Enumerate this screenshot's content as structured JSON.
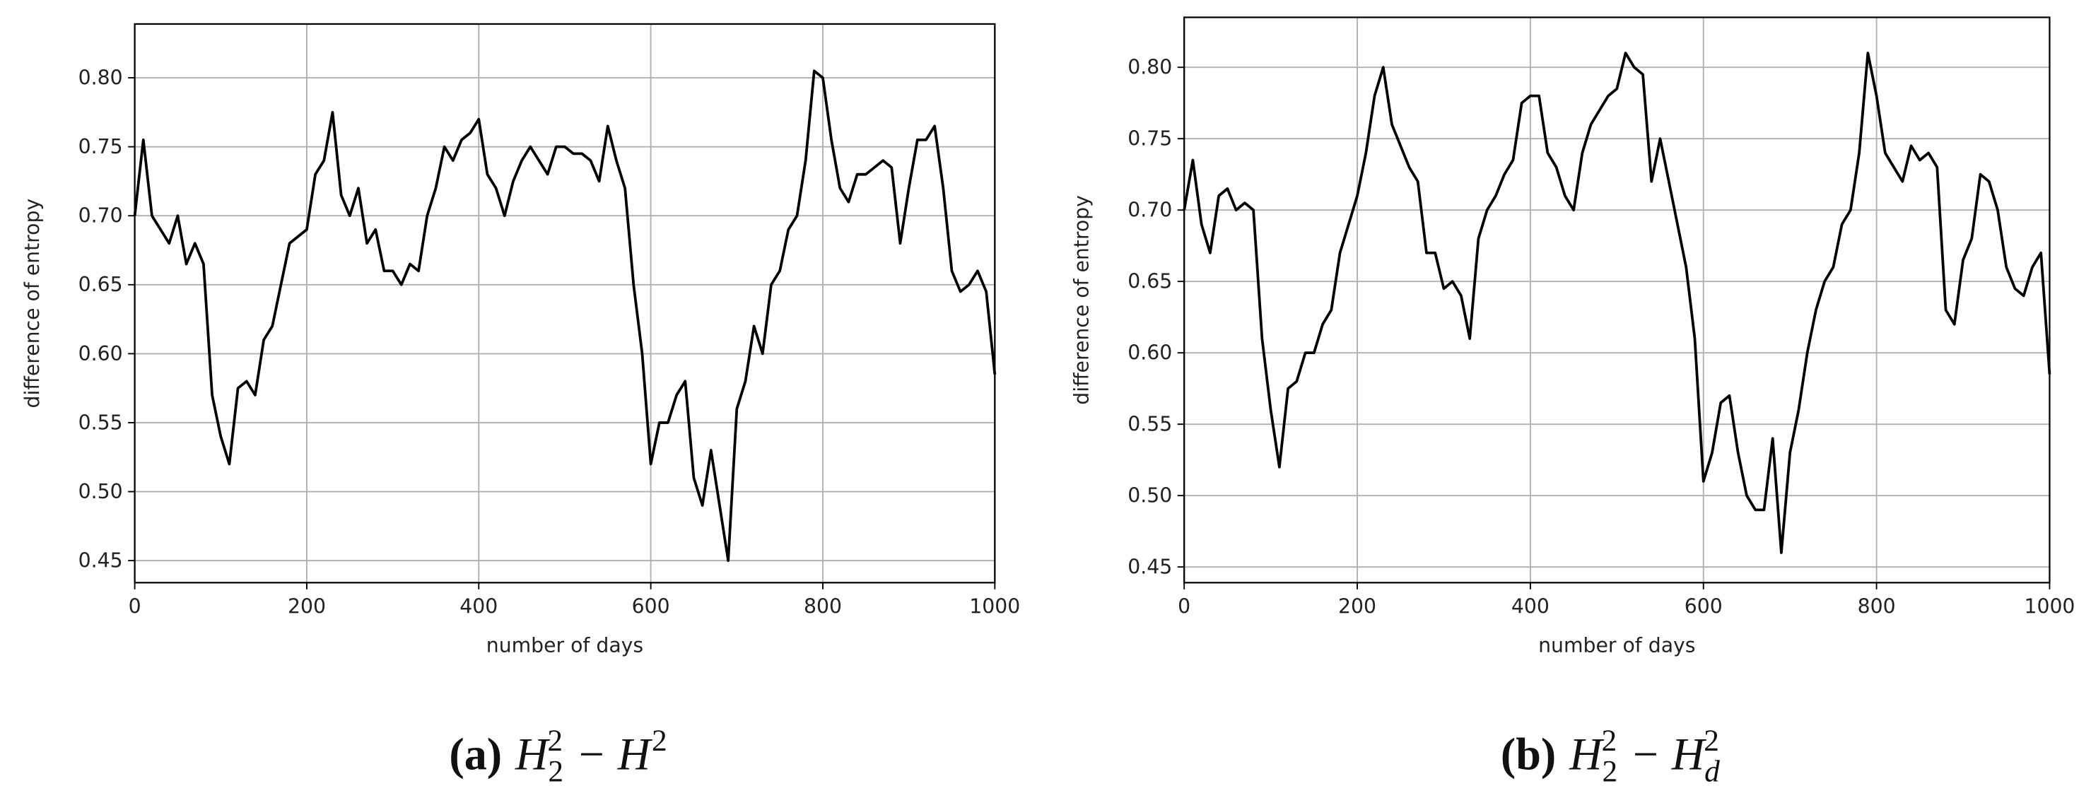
{
  "chart_data": [
    {
      "type": "line",
      "x_label": "number of days",
      "y_label": "difference of entropy",
      "color": "#000000",
      "grid": true,
      "xlim": [
        0,
        1000
      ],
      "xticks": [
        0,
        200,
        400,
        600,
        800,
        1000
      ],
      "ylim": [
        0.434,
        0.839
      ],
      "yticks": [
        0.45,
        {
          "value": 0.5,
          "label": "0.50"
        },
        0.55,
        {
          "value": 0.6,
          "label": "0.60"
        },
        0.65,
        {
          "value": 0.7,
          "label": "0.70"
        },
        0.75,
        {
          "value": 0.8,
          "label": "0.80"
        }
      ],
      "x": [
        0,
        10,
        20,
        30,
        40,
        50,
        60,
        70,
        80,
        90,
        100,
        110,
        120,
        130,
        140,
        150,
        160,
        170,
        180,
        190,
        200,
        210,
        220,
        230,
        240,
        250,
        260,
        270,
        280,
        290,
        300,
        310,
        320,
        330,
        340,
        350,
        360,
        370,
        380,
        390,
        400,
        410,
        420,
        430,
        440,
        450,
        460,
        470,
        480,
        490,
        500,
        510,
        520,
        530,
        540,
        550,
        560,
        570,
        580,
        590,
        600,
        610,
        620,
        630,
        640,
        650,
        660,
        670,
        680,
        690,
        700,
        710,
        720,
        730,
        740,
        750,
        760,
        770,
        780,
        790,
        800,
        810,
        820,
        830,
        840,
        850,
        860,
        870,
        880,
        890,
        900,
        910,
        920,
        930,
        940,
        950,
        960,
        970,
        980,
        990,
        1000
      ],
      "values": [
        0.7,
        0.755,
        0.7,
        0.69,
        0.68,
        0.7,
        0.665,
        0.68,
        0.665,
        0.57,
        0.54,
        0.52,
        0.575,
        0.58,
        0.57,
        0.61,
        0.62,
        0.65,
        0.68,
        0.685,
        0.69,
        0.73,
        0.74,
        0.775,
        0.715,
        0.7,
        0.72,
        0.68,
        0.69,
        0.66,
        0.66,
        0.65,
        0.665,
        0.66,
        0.7,
        0.72,
        0.75,
        0.74,
        0.755,
        0.76,
        0.77,
        0.73,
        0.72,
        0.7,
        0.725,
        0.74,
        0.75,
        0.74,
        0.73,
        0.75,
        0.75,
        0.745,
        0.745,
        0.74,
        0.725,
        0.765,
        0.74,
        0.72,
        0.65,
        0.6,
        0.52,
        0.55,
        0.55,
        0.57,
        0.58,
        0.51,
        0.49,
        0.53,
        0.49,
        0.45,
        0.56,
        0.58,
        0.62,
        0.6,
        0.65,
        0.66,
        0.69,
        0.7,
        0.74,
        0.805,
        0.8,
        0.755,
        0.72,
        0.71,
        0.73,
        0.73,
        0.735,
        0.74,
        0.735,
        0.68,
        0.72,
        0.755,
        0.755,
        0.765,
        0.72,
        0.66,
        0.645,
        0.65,
        0.66,
        0.645,
        0.585
      ],
      "caption": {
        "label": "(a)",
        "operator": "−",
        "terms": [
          {
            "base": "H",
            "sub": "2",
            "sup": "2"
          },
          {
            "base": "H",
            "sup": "2"
          }
        ]
      }
    },
    {
      "type": "line",
      "x_label": "number of days",
      "y_label": "difference of entropy",
      "color": "#000000",
      "grid": true,
      "xlim": [
        0,
        1000
      ],
      "xticks": [
        0,
        200,
        400,
        600,
        800,
        1000
      ],
      "ylim": [
        0.439,
        0.835
      ],
      "yticks": [
        0.45,
        {
          "value": 0.5,
          "label": "0.50"
        },
        0.55,
        {
          "value": 0.6,
          "label": "0.60"
        },
        0.65,
        {
          "value": 0.7,
          "label": "0.70"
        },
        0.75,
        {
          "value": 0.8,
          "label": "0.80"
        }
      ],
      "x": [
        0,
        10,
        20,
        30,
        40,
        50,
        60,
        70,
        80,
        90,
        100,
        110,
        120,
        130,
        140,
        150,
        160,
        170,
        180,
        190,
        200,
        210,
        220,
        230,
        240,
        250,
        260,
        270,
        280,
        290,
        300,
        310,
        320,
        330,
        340,
        350,
        360,
        370,
        380,
        390,
        400,
        410,
        420,
        430,
        440,
        450,
        460,
        470,
        480,
        490,
        500,
        510,
        520,
        530,
        540,
        550,
        560,
        570,
        580,
        590,
        600,
        610,
        620,
        630,
        640,
        650,
        660,
        670,
        680,
        690,
        700,
        710,
        720,
        730,
        740,
        750,
        760,
        770,
        780,
        790,
        800,
        810,
        820,
        830,
        840,
        850,
        860,
        870,
        880,
        890,
        900,
        910,
        920,
        930,
        940,
        950,
        960,
        970,
        980,
        990,
        1000
      ],
      "values": [
        0.7,
        0.735,
        0.69,
        0.67,
        0.71,
        0.715,
        0.7,
        0.705,
        0.7,
        0.61,
        0.56,
        0.52,
        0.575,
        0.58,
        0.6,
        0.6,
        0.62,
        0.63,
        0.67,
        0.69,
        0.71,
        0.74,
        0.78,
        0.8,
        0.76,
        0.745,
        0.73,
        0.72,
        0.67,
        0.67,
        0.645,
        0.65,
        0.64,
        0.61,
        0.68,
        0.7,
        0.71,
        0.725,
        0.735,
        0.775,
        0.78,
        0.78,
        0.74,
        0.73,
        0.71,
        0.7,
        0.74,
        0.76,
        0.77,
        0.78,
        0.785,
        0.81,
        0.8,
        0.795,
        0.72,
        0.75,
        0.72,
        0.69,
        0.66,
        0.61,
        0.51,
        0.53,
        0.565,
        0.57,
        0.53,
        0.5,
        0.49,
        0.49,
        0.54,
        0.46,
        0.53,
        0.56,
        0.6,
        0.63,
        0.65,
        0.66,
        0.69,
        0.7,
        0.74,
        0.81,
        0.78,
        0.74,
        0.73,
        0.72,
        0.745,
        0.735,
        0.74,
        0.73,
        0.63,
        0.62,
        0.665,
        0.68,
        0.725,
        0.72,
        0.7,
        0.66,
        0.645,
        0.64,
        0.66,
        0.67,
        0.585
      ],
      "caption": {
        "label": "(b)",
        "operator": "−",
        "terms": [
          {
            "base": "H",
            "sub": "2",
            "sup": "2"
          },
          {
            "base": "H",
            "sub": "d",
            "sup": "2"
          }
        ]
      }
    }
  ]
}
